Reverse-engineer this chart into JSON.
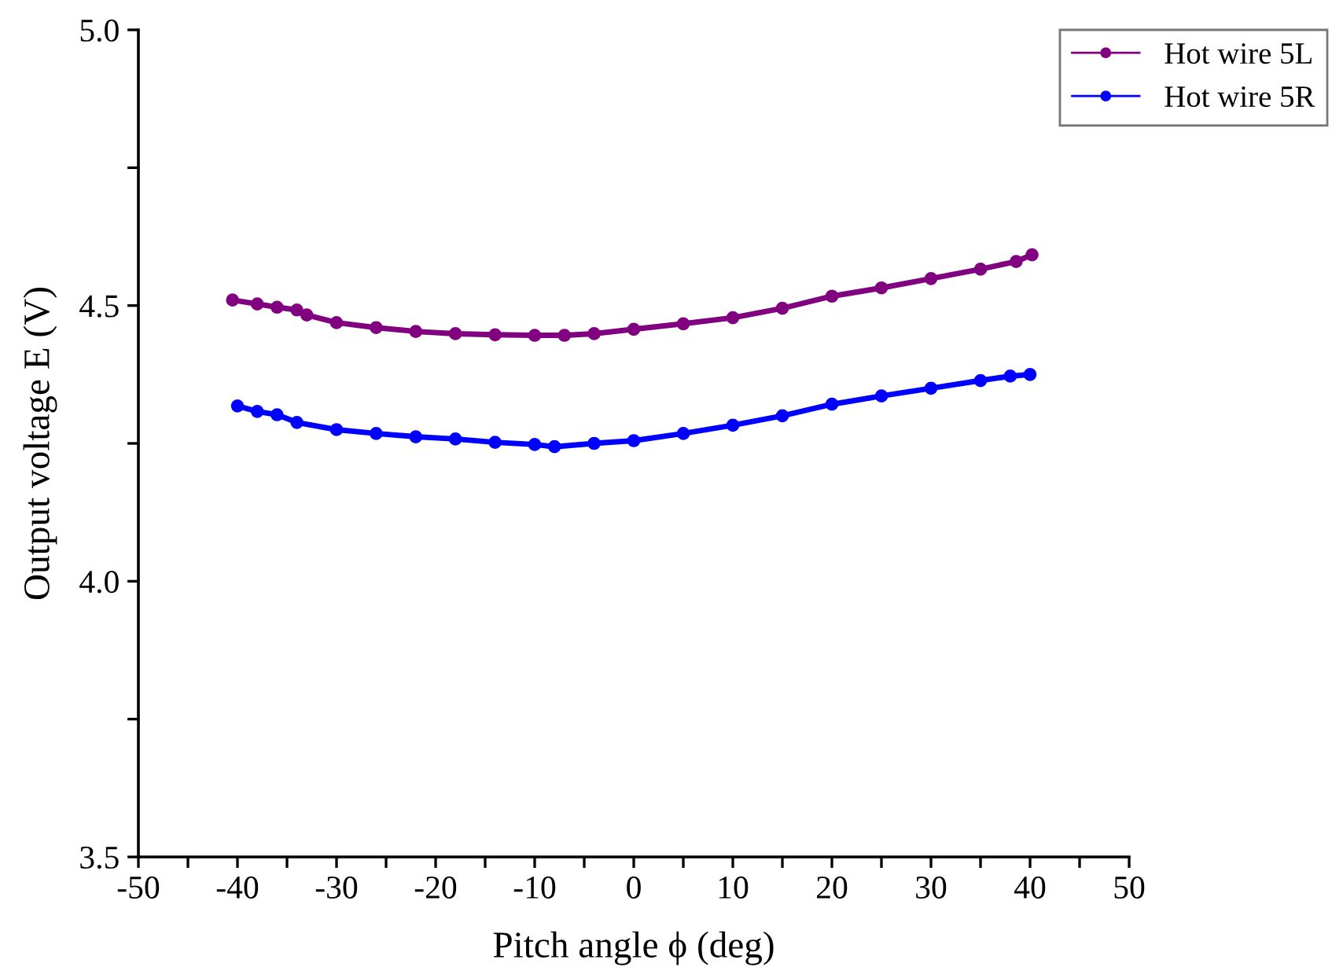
{
  "chart_data": {
    "type": "line",
    "xlabel": "Pitch angle ϕ (deg)",
    "ylabel": "Output voltage E (V)",
    "xlim": [
      -50,
      50
    ],
    "ylim": [
      3.5,
      5.0
    ],
    "xticks": [
      -50,
      {
        "value": -45,
        "label": null
      },
      -40,
      {
        "value": -35,
        "label": null
      },
      -30,
      {
        "value": -25,
        "label": null
      },
      -20,
      {
        "value": -15,
        "label": null
      },
      -10,
      {
        "value": -5,
        "label": null
      },
      0,
      {
        "value": 5,
        "label": null
      },
      10,
      {
        "value": 15,
        "label": null
      },
      20,
      {
        "value": 25,
        "label": null
      },
      30,
      {
        "value": 35,
        "label": null
      },
      40,
      {
        "value": 45,
        "label": null
      },
      50
    ],
    "yticks": [
      {
        "value": 3.5,
        "label": "3.5"
      },
      {
        "value": 3.75,
        "label": null
      },
      {
        "value": 4.0,
        "label": "4.0"
      },
      {
        "value": 4.25,
        "label": null
      },
      {
        "value": 4.5,
        "label": "4.5"
      },
      {
        "value": 4.75,
        "label": null
      },
      {
        "value": 5.0,
        "label": "5.0"
      }
    ],
    "grid": false,
    "legend": "top right",
    "marker": "circle",
    "line_style": "solid",
    "series": [
      {
        "name": "Hot wire 5L",
        "color": "#800080",
        "x": [
          -40.5,
          -38,
          -36,
          -34,
          -33,
          -30,
          -26,
          -22,
          -18,
          -14,
          -10,
          -7,
          -4,
          0,
          5,
          10,
          15,
          20,
          25,
          30,
          35,
          38.6,
          40.2
        ],
        "values": [
          4.51,
          4.503,
          4.497,
          4.492,
          4.483,
          4.469,
          4.46,
          4.453,
          4.449,
          4.447,
          4.446,
          4.446,
          4.449,
          4.457,
          4.467,
          4.478,
          4.495,
          4.517,
          4.532,
          4.549,
          4.566,
          4.58,
          4.592
        ]
      },
      {
        "name": "Hot wire 5R",
        "color": "#0000ff",
        "x": [
          -40,
          -38,
          -36,
          -34,
          -30,
          -26,
          -22,
          -18,
          -14,
          -10,
          -8,
          -4,
          0,
          5,
          10,
          15,
          20,
          25,
          30,
          35,
          38,
          40
        ],
        "values": [
          4.318,
          4.308,
          4.302,
          4.288,
          4.275,
          4.268,
          4.262,
          4.258,
          4.252,
          4.248,
          4.244,
          4.25,
          4.255,
          4.268,
          4.283,
          4.3,
          4.321,
          4.336,
          4.35,
          4.364,
          4.372,
          4.375
        ]
      }
    ]
  }
}
